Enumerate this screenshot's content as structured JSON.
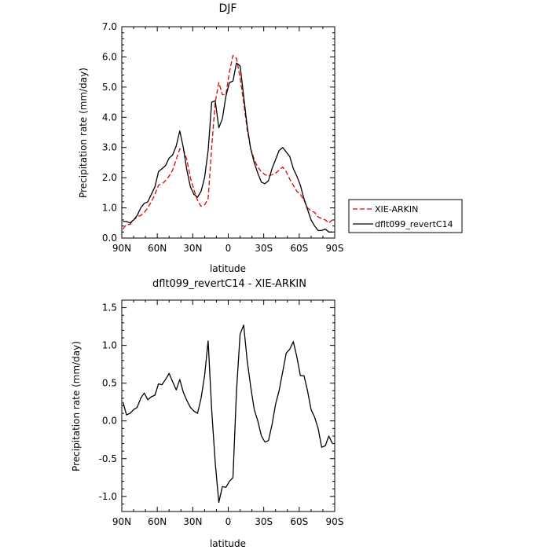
{
  "chart_data": [
    {
      "type": "line",
      "title": "DJF",
      "xlabel": "latitude",
      "ylabel": "Precipitation rate (mm/day)",
      "xlim": [
        90,
        -90
      ],
      "ylim": [
        0,
        7
      ],
      "grid": false,
      "legend_position": "right, outside plot",
      "x_ticks": [
        90,
        60,
        30,
        0,
        -30,
        -60,
        -90
      ],
      "x_tick_labels": [
        "90N",
        "60N",
        "30N",
        "0",
        "30S",
        "60S",
        "90S"
      ],
      "y_ticks": [
        0,
        1,
        2,
        3,
        4,
        5,
        6,
        7
      ],
      "y_tick_labels": [
        "0.0",
        "1.0",
        "2.0",
        "3.0",
        "4.0",
        "5.0",
        "6.0",
        "7.0"
      ],
      "series": [
        {
          "name": "XIE-ARKIN",
          "color": "#dd0000",
          "dash": "dashed",
          "x": [
            89,
            86,
            83,
            80,
            77,
            74,
            71,
            68,
            65,
            62,
            59,
            56,
            53,
            50,
            47,
            44,
            41,
            38,
            35,
            32,
            29,
            26,
            23,
            20,
            17,
            14,
            11,
            8,
            5,
            2,
            -1,
            -4,
            -7,
            -10,
            -13,
            -16,
            -19,
            -22,
            -25,
            -28,
            -31,
            -34,
            -37,
            -40,
            -43,
            -46,
            -49,
            -52,
            -55,
            -58,
            -61,
            -64,
            -67,
            -70,
            -73,
            -76,
            -79,
            -82,
            -85,
            -88
          ],
          "y": [
            0.3,
            0.45,
            0.45,
            0.6,
            0.7,
            0.75,
            0.85,
            1.0,
            1.2,
            1.45,
            1.75,
            1.8,
            1.9,
            2.05,
            2.25,
            2.6,
            2.95,
            2.95,
            2.6,
            2.0,
            1.6,
            1.25,
            1.05,
            1.1,
            1.3,
            3.0,
            4.5,
            5.15,
            4.75,
            4.75,
            5.5,
            6.05,
            5.95,
            5.3,
            4.5,
            3.6,
            2.95,
            2.6,
            2.35,
            2.2,
            2.1,
            2.05,
            2.1,
            2.15,
            2.25,
            2.35,
            2.2,
            1.95,
            1.75,
            1.55,
            1.45,
            1.25,
            1.0,
            0.9,
            0.85,
            0.7,
            0.65,
            0.6,
            0.5,
            0.6
          ]
        },
        {
          "name": "dflt099_revertC14",
          "color": "#000000",
          "dash": "solid",
          "x": [
            89,
            86,
            83,
            80,
            77,
            74,
            71,
            68,
            65,
            62,
            59,
            56,
            53,
            50,
            47,
            44,
            41,
            38,
            35,
            32,
            29,
            26,
            23,
            20,
            17,
            14,
            11,
            8,
            5,
            2,
            -1,
            -4,
            -7,
            -10,
            -13,
            -16,
            -19,
            -22,
            -25,
            -28,
            -31,
            -34,
            -37,
            -40,
            -43,
            -46,
            -49,
            -52,
            -55,
            -58,
            -61,
            -64,
            -67,
            -70,
            -73,
            -76,
            -79,
            -82,
            -85,
            -88
          ],
          "y": [
            0.55,
            0.55,
            0.5,
            0.6,
            0.75,
            1.0,
            1.15,
            1.2,
            1.45,
            1.7,
            2.2,
            2.3,
            2.4,
            2.65,
            2.75,
            3.05,
            3.55,
            3.0,
            2.25,
            1.7,
            1.45,
            1.35,
            1.55,
            2.0,
            2.9,
            4.5,
            4.55,
            3.65,
            3.95,
            4.7,
            5.15,
            5.2,
            5.8,
            5.7,
            4.7,
            3.7,
            2.95,
            2.5,
            2.15,
            1.85,
            1.8,
            1.9,
            2.3,
            2.6,
            2.9,
            3.0,
            2.85,
            2.7,
            2.3,
            2.05,
            1.75,
            1.3,
            0.95,
            0.6,
            0.4,
            0.25,
            0.25,
            0.3,
            0.2,
            0.2
          ]
        }
      ]
    },
    {
      "type": "line",
      "title": "dflt099_revertC14 - XIE-ARKIN",
      "xlabel": "latitude",
      "ylabel": "Precipitation rate (mm/day)",
      "xlim": [
        90,
        -90
      ],
      "ylim": [
        -1.2,
        1.6
      ],
      "grid": false,
      "x_ticks": [
        90,
        60,
        30,
        0,
        -30,
        -60,
        -90
      ],
      "x_tick_labels": [
        "90N",
        "60N",
        "30N",
        "0",
        "30S",
        "60S",
        "90S"
      ],
      "y_ticks": [
        -1.0,
        -0.5,
        0.0,
        0.5,
        1.0,
        1.5
      ],
      "y_tick_labels": [
        "-1.0",
        "-0.5",
        "0.0",
        "0.5",
        "1.0",
        "1.5"
      ],
      "series": [
        {
          "color": "#000000",
          "dash": "solid",
          "x": [
            89,
            86,
            83,
            80,
            77,
            74,
            71,
            68,
            65,
            62,
            59,
            56,
            53,
            50,
            47,
            44,
            41,
            38,
            35,
            32,
            29,
            26,
            23,
            20,
            17,
            14,
            11,
            8,
            5,
            2,
            -1,
            -4,
            -7,
            -10,
            -13,
            -16,
            -19,
            -22,
            -25,
            -28,
            -31,
            -34,
            -37,
            -40,
            -43,
            -46,
            -49,
            -52,
            -55,
            -58,
            -61,
            -64,
            -67,
            -70,
            -73,
            -76,
            -79,
            -82,
            -85,
            -88
          ],
          "y": [
            0.25,
            0.08,
            0.1,
            0.15,
            0.18,
            0.3,
            0.37,
            0.28,
            0.32,
            0.34,
            0.49,
            0.48,
            0.55,
            0.63,
            0.52,
            0.41,
            0.55,
            0.38,
            0.27,
            0.18,
            0.13,
            0.1,
            0.3,
            0.6,
            1.06,
            0.15,
            -0.55,
            -1.08,
            -0.87,
            -0.88,
            -0.8,
            -0.75,
            0.4,
            1.15,
            1.27,
            0.8,
            0.45,
            0.15,
            0.0,
            -0.2,
            -0.28,
            -0.26,
            -0.05,
            0.22,
            0.4,
            0.65,
            0.9,
            0.95,
            1.05,
            0.85,
            0.6,
            0.6,
            0.4,
            0.15,
            0.05,
            -0.1,
            -0.35,
            -0.33,
            -0.2,
            -0.3
          ]
        }
      ]
    }
  ]
}
